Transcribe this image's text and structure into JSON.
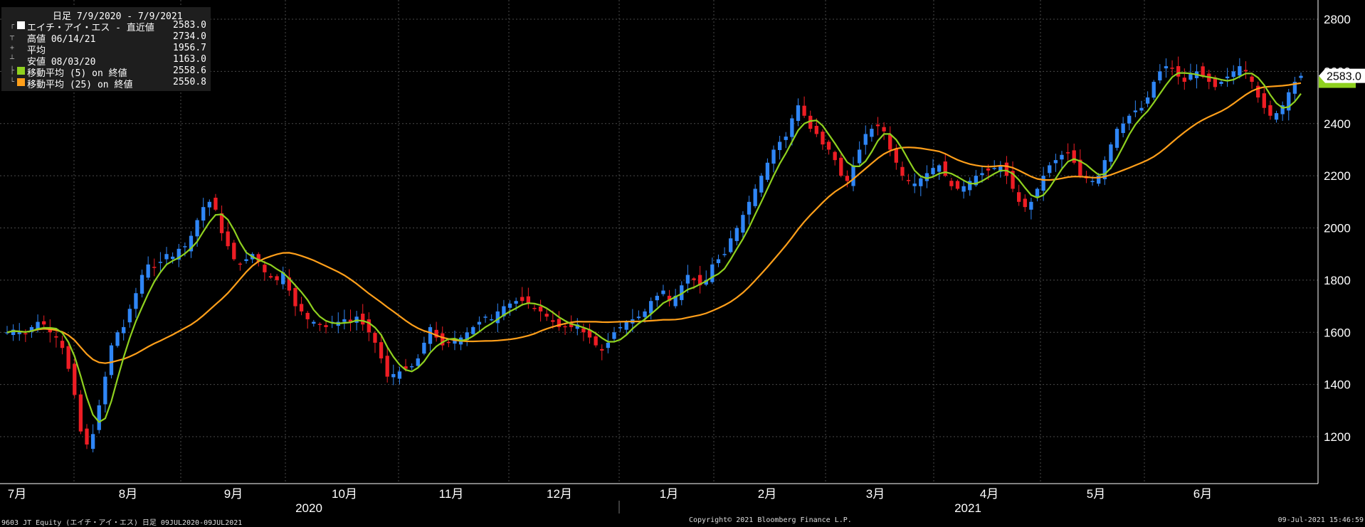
{
  "legend": {
    "title": "日足 7/9/2020 - 7/9/2021",
    "items": [
      {
        "symbol": "■",
        "label": "エイチ・アイ・エス - 直近値",
        "value": "2583.0",
        "color": "#ffffff"
      },
      {
        "symbol": "┬",
        "label": "高値 06/14/21",
        "value": "2734.0"
      },
      {
        "symbol": "+",
        "label": "平均",
        "value": "1956.7"
      },
      {
        "symbol": "┴",
        "label": "安値 08/03/20",
        "value": "1163.0"
      },
      {
        "symbol": "■",
        "label": "移動平均 (5) on 終値",
        "value": "2558.6",
        "color": "#8fd11f"
      },
      {
        "symbol": "■",
        "label": "移動平均 (25) on 終値",
        "value": "2550.8",
        "color": "#ff9f1a"
      }
    ]
  },
  "footer": {
    "left": "9603 JT Equity (エイチ・アイ・エス) 日足 09JUL2020-09JUL2021",
    "center": "Copyright© 2021 Bloomberg Finance L.P.",
    "right": "09-Jul-2021 15:46:59"
  },
  "chart_data": {
    "type": "candlestick",
    "ylim": [
      1000,
      2900
    ],
    "yticks": [
      1200,
      1400,
      1600,
      1800,
      2000,
      2200,
      2400,
      2600,
      2800
    ],
    "months": [
      "7月",
      "8月",
      "9月",
      "10月",
      "11月",
      "12月",
      "1月",
      "2月",
      "3月",
      "4月",
      "5月",
      "6月"
    ],
    "years": [
      "2020",
      "2021"
    ],
    "last_value_label": "2583.0",
    "colors": {
      "up": "#2f86f6",
      "down": "#ee1d24",
      "ma5": "#8fd11f",
      "ma25": "#ff9f1a",
      "grid": "#4a4a4a"
    },
    "closes": [
      1600,
      1610,
      1600,
      1595,
      1620,
      1640,
      1630,
      1600,
      1580,
      1540,
      1460,
      1360,
      1220,
      1170,
      1210,
      1320,
      1430,
      1550,
      1600,
      1620,
      1690,
      1750,
      1820,
      1860,
      1850,
      1870,
      1900,
      1890,
      1920,
      1930,
      1970,
      2030,
      2080,
      2100,
      2070,
      1980,
      1930,
      1880,
      1860,
      1880,
      1900,
      1870,
      1830,
      1810,
      1800,
      1830,
      1760,
      1700,
      1680,
      1650,
      1640,
      1630,
      1620,
      1640,
      1640,
      1650,
      1640,
      1660,
      1630,
      1600,
      1560,
      1500,
      1430,
      1440,
      1450,
      1460,
      1470,
      1500,
      1560,
      1620,
      1580,
      1550,
      1560,
      1570,
      1580,
      1600,
      1620,
      1640,
      1660,
      1650,
      1680,
      1700,
      1710,
      1720,
      1720,
      1710,
      1690,
      1680,
      1660,
      1640,
      1620,
      1620,
      1620,
      1630,
      1600,
      1580,
      1550,
      1530,
      1560,
      1600,
      1620,
      1640,
      1650,
      1660,
      1680,
      1720,
      1740,
      1760,
      1720,
      1740,
      1780,
      1820,
      1800,
      1780,
      1800,
      1860,
      1880,
      1900,
      1960,
      2000,
      2050,
      2100,
      2150,
      2200,
      2250,
      2300,
      2330,
      2350,
      2420,
      2470,
      2430,
      2380,
      2360,
      2320,
      2300,
      2260,
      2200,
      2180,
      2240,
      2300,
      2360,
      2380,
      2390,
      2370,
      2300,
      2250,
      2200,
      2180,
      2170,
      2190,
      2210,
      2230,
      2240,
      2200,
      2160,
      2150,
      2160,
      2180,
      2200,
      2210,
      2220,
      2230,
      2240,
      2200,
      2150,
      2100,
      2080,
      2100,
      2150,
      2200,
      2240,
      2260,
      2280,
      2290,
      2250,
      2200,
      2190,
      2180,
      2200,
      2260,
      2320,
      2380,
      2400,
      2430,
      2450,
      2460,
      2500,
      2560,
      2600,
      2620,
      2610,
      2580,
      2560,
      2590,
      2600,
      2580,
      2560,
      2540,
      2560,
      2580,
      2600,
      2620,
      2600,
      2560,
      2500,
      2460,
      2430,
      2440,
      2470,
      2520,
      2560,
      2583
    ]
  }
}
